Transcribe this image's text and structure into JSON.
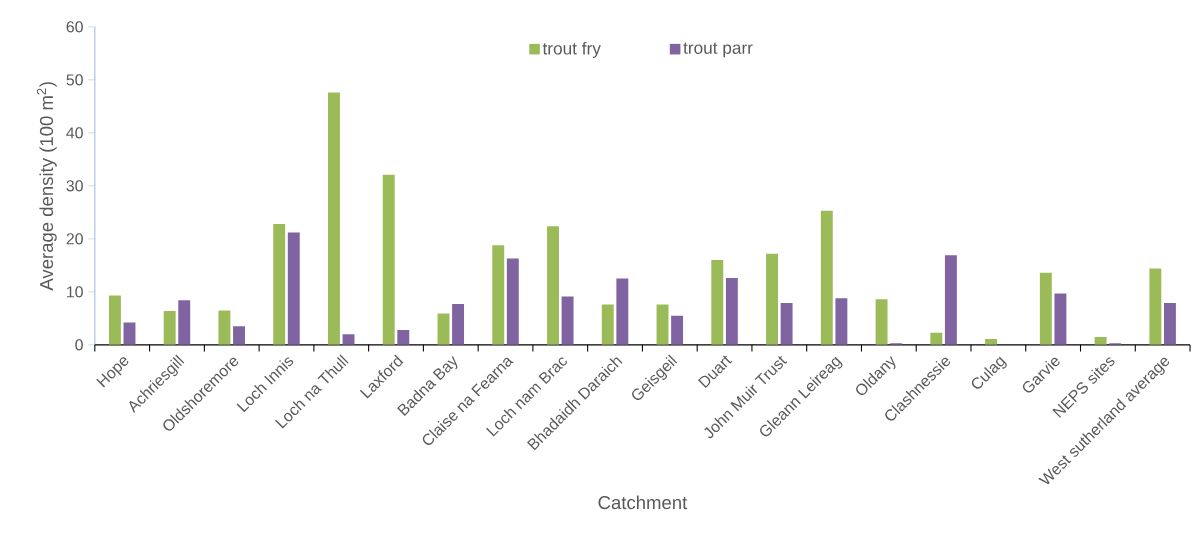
{
  "chart_data": {
    "type": "bar",
    "xlabel": "Catchment",
    "ylabel": "Average density (100 m$^{2}$)",
    "categories": [
      "Hope",
      "Achriesgill",
      "Oldshoremore",
      "Loch Innis",
      "Loch na Thull",
      "Laxford",
      "Badna Bay",
      "Claise na Fearna",
      "Loch nam Brac",
      "Bhadaidh Daraich",
      "Geisgeil",
      "Duart",
      "John Muir Trust",
      "Gleann Leireag",
      "Oldany",
      "Clashnessie",
      "Culag",
      "Garvie",
      "NEPS sites",
      "West sutherland average"
    ],
    "series": [
      {
        "name": "trout fry",
        "color": "#9bbb59",
        "values": [
          9.3,
          6.4,
          6.5,
          22.8,
          47.6,
          32.1,
          5.9,
          18.8,
          22.4,
          7.6,
          7.6,
          16.0,
          17.2,
          25.3,
          8.6,
          2.3,
          1.1,
          13.6,
          1.5,
          14.4
        ]
      },
      {
        "name": "trout parr",
        "color": "#8064a2",
        "values": [
          4.2,
          8.4,
          3.5,
          21.2,
          2.0,
          2.8,
          7.7,
          16.3,
          9.1,
          12.5,
          5.5,
          12.6,
          7.9,
          8.8,
          0.3,
          16.9,
          0,
          9.7,
          0.3,
          7.9
        ]
      }
    ],
    "ylim": [
      0,
      60
    ],
    "yticks": [
      0,
      10,
      20,
      30,
      40,
      50,
      60
    ],
    "legend": "top",
    "grid": false
  }
}
